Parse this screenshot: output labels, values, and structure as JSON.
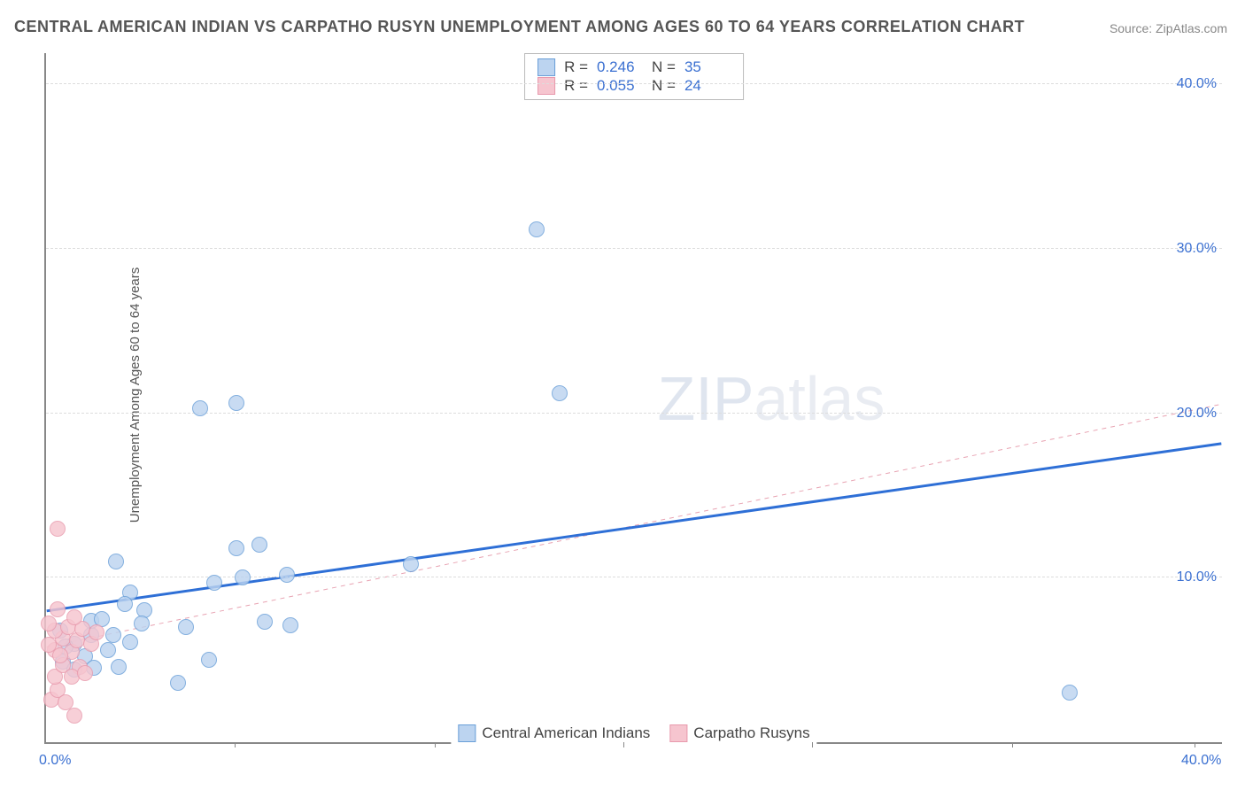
{
  "title": "CENTRAL AMERICAN INDIAN VS CARPATHO RUSYN UNEMPLOYMENT AMONG AGES 60 TO 64 YEARS CORRELATION CHART",
  "source": "Source: ZipAtlas.com",
  "ylabel": "Unemployment Among Ages 60 to 64 years",
  "watermark_a": "ZIP",
  "watermark_b": "atlas",
  "chart": {
    "type": "scatter",
    "xlim": [
      0,
      42
    ],
    "ylim": [
      0,
      42
    ],
    "y_ticks": [
      10,
      20,
      30,
      40
    ],
    "y_tick_labels": [
      "10.0%",
      "20.0%",
      "30.0%",
      "40.0%"
    ],
    "x_tick_labels": {
      "left": "0.0%",
      "right": "40.0%"
    },
    "x_tick_marks": [
      0.16,
      0.33,
      0.49,
      0.65,
      0.82,
      0.975
    ],
    "grid_color": "#dddddd",
    "axis_color": "#888888",
    "bg": "#ffffff",
    "series": [
      {
        "name": "Central American Indians",
        "fill": "#bcd4f0",
        "stroke": "#6a9fd8",
        "marker_r": 9,
        "opacity": 0.82,
        "R": "0.246",
        "N": "35",
        "trend": {
          "y_at_x0": 8.0,
          "y_at_xmax": 18.2,
          "color": "#2e6fd6",
          "width": 3,
          "dash": "none"
        },
        "points": [
          [
            17.5,
            31.2
          ],
          [
            18.3,
            21.2
          ],
          [
            6.8,
            20.6
          ],
          [
            5.5,
            20.3
          ],
          [
            36.5,
            3.0
          ],
          [
            2.5,
            11.0
          ],
          [
            6.8,
            11.8
          ],
          [
            7.6,
            12.0
          ],
          [
            6.0,
            9.7
          ],
          [
            7.0,
            10.0
          ],
          [
            8.6,
            10.2
          ],
          [
            13.0,
            10.8
          ],
          [
            7.8,
            7.3
          ],
          [
            8.7,
            7.1
          ],
          [
            3.0,
            9.1
          ],
          [
            3.5,
            8.0
          ],
          [
            4.7,
            3.6
          ],
          [
            5.8,
            5.0
          ],
          [
            3.4,
            7.2
          ],
          [
            5.0,
            7.0
          ],
          [
            1.0,
            6.0
          ],
          [
            0.6,
            4.9
          ],
          [
            0.7,
            5.8
          ],
          [
            1.6,
            6.5
          ],
          [
            2.4,
            6.5
          ],
          [
            1.6,
            7.4
          ],
          [
            2.0,
            7.5
          ],
          [
            2.8,
            8.4
          ],
          [
            1.4,
            5.2
          ],
          [
            2.2,
            5.6
          ],
          [
            3.0,
            6.1
          ],
          [
            1.0,
            4.4
          ],
          [
            1.7,
            4.5
          ],
          [
            2.6,
            4.6
          ],
          [
            0.5,
            6.8
          ]
        ]
      },
      {
        "name": "Carpatho Rusyns",
        "fill": "#f6c5cf",
        "stroke": "#e89aad",
        "marker_r": 9,
        "opacity": 0.82,
        "R": "0.055",
        "N": "24",
        "trend": {
          "y_at_x0": 5.8,
          "y_at_xmax": 20.6,
          "color": "#e8a3b2",
          "width": 1,
          "dash": "5,5"
        },
        "points": [
          [
            0.4,
            13.0
          ],
          [
            0.2,
            2.6
          ],
          [
            1.0,
            1.6
          ],
          [
            0.4,
            3.2
          ],
          [
            0.7,
            2.4
          ],
          [
            0.3,
            4.0
          ],
          [
            0.3,
            5.6
          ],
          [
            0.9,
            5.5
          ],
          [
            0.6,
            6.3
          ],
          [
            1.1,
            6.2
          ],
          [
            0.6,
            4.7
          ],
          [
            1.2,
            4.6
          ],
          [
            0.9,
            4.0
          ],
          [
            1.4,
            4.2
          ],
          [
            0.3,
            6.8
          ],
          [
            0.1,
            7.2
          ],
          [
            0.1,
            5.9
          ],
          [
            0.5,
            5.3
          ],
          [
            0.8,
            7.0
          ],
          [
            1.3,
            6.9
          ],
          [
            1.0,
            7.6
          ],
          [
            0.4,
            8.1
          ],
          [
            1.6,
            6.0
          ],
          [
            1.8,
            6.7
          ]
        ]
      }
    ]
  }
}
